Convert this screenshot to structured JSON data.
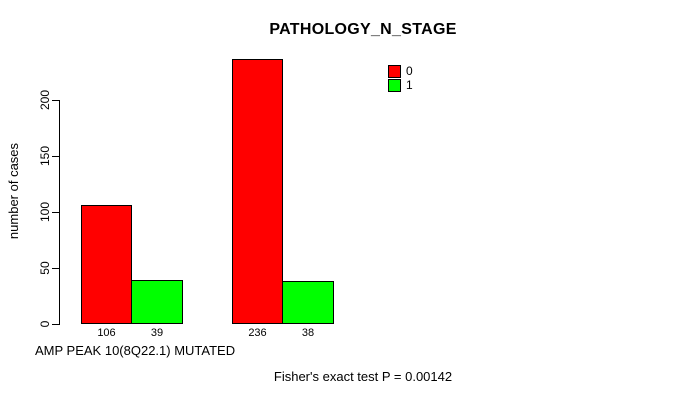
{
  "chart_data": {
    "type": "bar",
    "title": "PATHOLOGY_N_STAGE",
    "ylabel": "number of cases",
    "xlabel": "AMP PEAK 10(8Q22.1) MUTATED",
    "footnote": "Fisher's exact test P = 0.00142",
    "yticks": [
      0,
      50,
      100,
      150,
      200
    ],
    "ylim": [
      0,
      240
    ],
    "grid": false,
    "legend_position": "inside-top-right",
    "series": [
      {
        "name": "0",
        "color": "#ff0000",
        "values": [
          106,
          236
        ]
      },
      {
        "name": "1",
        "color": "#00ff00",
        "values": [
          39,
          38
        ]
      }
    ],
    "bars": [
      {
        "label": "106",
        "value": 106,
        "series": "0",
        "group": 0,
        "color": "#ff0000"
      },
      {
        "label": "39",
        "value": 39,
        "series": "1",
        "group": 0,
        "color": "#00ff00"
      },
      {
        "label": "236",
        "value": 236,
        "series": "0",
        "group": 1,
        "color": "#ff0000"
      },
      {
        "label": "38",
        "value": 38,
        "series": "1",
        "group": 1,
        "color": "#00ff00"
      }
    ],
    "legend": [
      {
        "label": "0",
        "color": "#ff0000"
      },
      {
        "label": "1",
        "color": "#00ff00"
      }
    ],
    "colors": {
      "bar_border": "#000000",
      "background": "#ffffff",
      "text": "#000000"
    }
  }
}
